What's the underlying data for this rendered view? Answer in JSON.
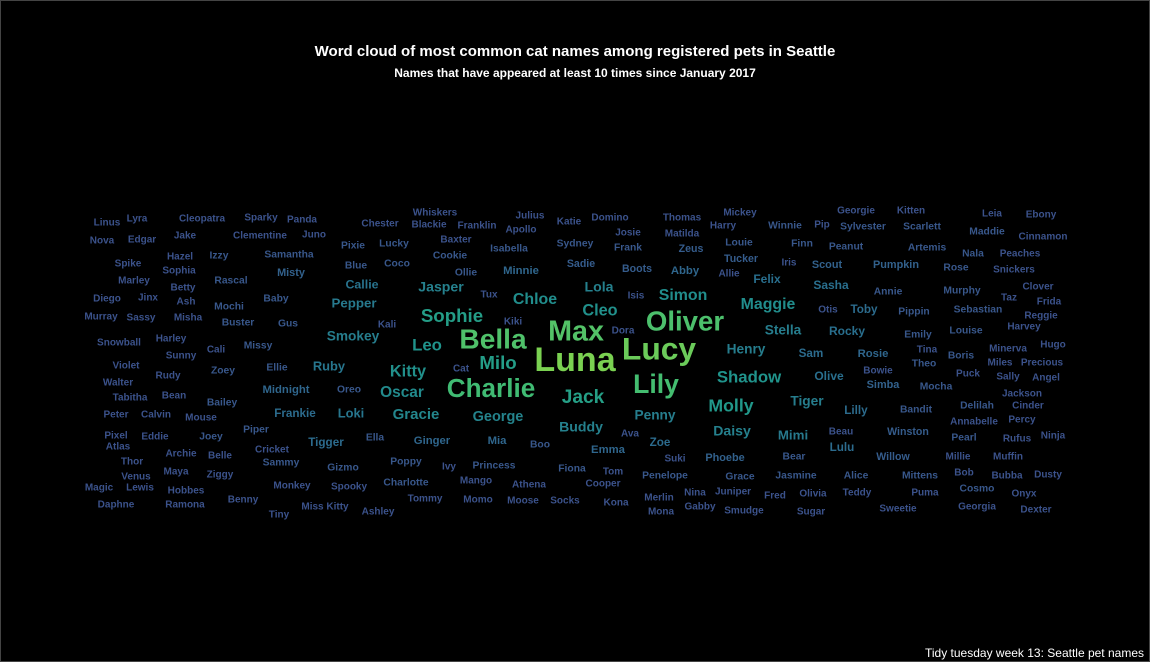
{
  "chart_data": {
    "type": "wordcloud",
    "title": "Word cloud of most common cat names among registered pets in Seattle",
    "subtitle": "Names that have appeared at least 10 times since January 2017",
    "caption": "Tidy tuesday week 13: Seattle pet names",
    "words": [
      {
        "w": "Luna",
        "n": 10
      },
      {
        "w": "Lucy",
        "n": 9.6
      },
      {
        "w": "Max",
        "n": 9.0
      },
      {
        "w": "Bella",
        "n": 8.9
      },
      {
        "w": "Oliver",
        "n": 8.8
      },
      {
        "w": "Lily",
        "n": 8.6
      },
      {
        "w": "Charlie",
        "n": 8.5
      },
      {
        "w": "Jack",
        "n": 7.1
      },
      {
        "w": "Sophie",
        "n": 7.0
      },
      {
        "w": "Milo",
        "n": 7.0
      },
      {
        "w": "Molly",
        "n": 6.8
      },
      {
        "w": "Leo",
        "n": 6.6
      },
      {
        "w": "Shadow",
        "n": 6.6
      },
      {
        "w": "Kitty",
        "n": 6.5
      },
      {
        "w": "Cleo",
        "n": 6.5
      },
      {
        "w": "Simon",
        "n": 6.4
      },
      {
        "w": "Chloe",
        "n": 6.4
      },
      {
        "w": "Maggie",
        "n": 6.4
      },
      {
        "w": "Oscar",
        "n": 6.3
      },
      {
        "w": "Gracie",
        "n": 6.2
      },
      {
        "w": "George",
        "n": 6.1
      },
      {
        "w": "Buddy",
        "n": 6.0
      },
      {
        "w": "Lola",
        "n": 6.0
      },
      {
        "w": "Jasper",
        "n": 6.0
      },
      {
        "w": "Daisy",
        "n": 6.0
      },
      {
        "w": "Penny",
        "n": 5.9
      },
      {
        "w": "Tiger",
        "n": 5.9
      },
      {
        "w": "Smokey",
        "n": 5.9
      },
      {
        "w": "Henry",
        "n": 5.9
      },
      {
        "w": "Stella",
        "n": 5.9
      },
      {
        "w": "Pepper",
        "n": 5.8
      },
      {
        "w": "Mimi",
        "n": 5.8
      },
      {
        "w": "Ruby",
        "n": 5.7
      },
      {
        "w": "Loki",
        "n": 5.7
      },
      {
        "w": "Callie",
        "n": 5.6
      },
      {
        "w": "Sasha",
        "n": 5.5
      },
      {
        "w": "Felix",
        "n": 5.5
      },
      {
        "w": "Rocky",
        "n": 5.5
      },
      {
        "w": "Olive",
        "n": 5.5
      },
      {
        "w": "Sam",
        "n": 5.4
      },
      {
        "w": "Tigger",
        "n": 5.4
      },
      {
        "w": "Frankie",
        "n": 5.4
      },
      {
        "w": "Toby",
        "n": 5.4
      },
      {
        "w": "Zoe",
        "n": 5.4
      },
      {
        "w": "Lulu",
        "n": 5.4
      },
      {
        "w": "Lilly",
        "n": 5.4
      },
      {
        "w": "Ginger",
        "n": 5.3
      },
      {
        "w": "Midnight",
        "n": 5.3
      },
      {
        "w": "Emma",
        "n": 5.3
      },
      {
        "w": "Mia",
        "n": 5.3
      },
      {
        "w": "Rosie",
        "n": 5.3
      },
      {
        "w": "Abby",
        "n": 5.3
      },
      {
        "w": "Minnie",
        "n": 5.3
      },
      {
        "w": "Phoebe",
        "n": 5.2
      },
      {
        "w": "Scout",
        "n": 5.2
      },
      {
        "w": "Pumpkin",
        "n": 5.2
      },
      {
        "w": "Simba",
        "n": 5.2
      },
      {
        "w": "Misty",
        "n": 5.2
      },
      {
        "w": "Sadie",
        "n": 5.1
      },
      {
        "w": "Boots",
        "n": 5.1
      },
      {
        "w": "Zeus",
        "n": 5.1
      },
      {
        "w": "Tucker",
        "n": 5.1
      },
      {
        "w": "Willow",
        "n": 5.1
      },
      {
        "w": "Winston",
        "n": 5.1
      },
      {
        "w": "Bear",
        "n": 5.0
      },
      {
        "w": "Sammy",
        "n": 5.0
      },
      {
        "w": "Poppy",
        "n": 5.0
      },
      {
        "w": "Samantha",
        "n": 5.0
      },
      {
        "w": "Baby",
        "n": 5.0
      },
      {
        "w": "Gus",
        "n": 5.0
      },
      {
        "w": "Ella",
        "n": 5.0
      },
      {
        "w": "Boo",
        "n": 5.0
      },
      {
        "w": "Annie",
        "n": 5.0
      },
      {
        "w": "Pippin",
        "n": 5.0
      },
      {
        "w": "Theo",
        "n": 5.0
      },
      {
        "w": "Cookie",
        "n": 5.0
      },
      {
        "w": "Ollie",
        "n": 5.0
      },
      {
        "w": "Coco",
        "n": 5.0
      },
      {
        "w": "Lucky",
        "n": 5.0
      },
      {
        "w": "Sydney",
        "n": 5.0
      },
      {
        "w": "Isabella",
        "n": 5.0
      },
      {
        "w": "Frank",
        "n": 5.0
      },
      {
        "w": "Louie",
        "n": 5.0
      },
      {
        "w": "Finn",
        "n": 5.0
      },
      {
        "w": "Peanut",
        "n": 5.0
      },
      {
        "w": "Artemis",
        "n": 5.0
      },
      {
        "w": "Blue",
        "n": 5.0
      },
      {
        "w": "Pixie",
        "n": 5.0
      },
      {
        "w": "Izzy",
        "n": 5.0
      },
      {
        "w": "Ellie",
        "n": 5.0
      },
      {
        "w": "Missy",
        "n": 5.0
      },
      {
        "w": "Oreo",
        "n": 5.0
      },
      {
        "w": "Piper",
        "n": 5.0
      },
      {
        "w": "Gizmo",
        "n": 5.0
      },
      {
        "w": "Princess",
        "n": 5.0
      },
      {
        "w": "Fiona",
        "n": 5.0
      },
      {
        "w": "Penelope",
        "n": 5.0
      },
      {
        "w": "Grace",
        "n": 5.0
      },
      {
        "w": "Jasmine",
        "n": 5.0
      },
      {
        "w": "Mittens",
        "n": 5.0
      },
      {
        "w": "Pearl",
        "n": 5.0
      },
      {
        "w": "Bandit",
        "n": 5.0
      },
      {
        "w": "Murphy",
        "n": 5.0
      },
      {
        "w": "Sebastian",
        "n": 5.0
      },
      {
        "w": "Emily",
        "n": 5.0
      },
      {
        "w": "Mocha",
        "n": 5.0
      },
      {
        "w": "Rascal",
        "n": 5.0
      },
      {
        "w": "Mochi",
        "n": 5.0
      },
      {
        "w": "Buster",
        "n": 5.0
      },
      {
        "w": "Zoey",
        "n": 5.0
      },
      {
        "w": "Bailey",
        "n": 5.0
      },
      {
        "w": "Joey",
        "n": 5.0
      },
      {
        "w": "Charlotte",
        "n": 5.0
      },
      {
        "w": "Alice",
        "n": 5.0
      },
      {
        "w": "Cosmo",
        "n": 5.0
      },
      {
        "w": "Delilah",
        "n": 5.0
      },
      {
        "w": "Louise",
        "n": 5.0
      },
      {
        "w": "Boris",
        "n": 5.0
      },
      {
        "w": "Rose",
        "n": 5.0
      },
      {
        "w": "Nala",
        "n": 5.0
      },
      {
        "w": "Maddie",
        "n": 5.0
      },
      {
        "w": "Scarlett",
        "n": 5.0
      },
      {
        "w": "Sylvester",
        "n": 5.0
      },
      {
        "w": "Winnie",
        "n": 5.0
      },
      {
        "w": "Baxter",
        "n": 4.9
      },
      {
        "w": "Sophia",
        "n": 4.9
      },
      {
        "w": "Hazel",
        "n": 4.9
      },
      {
        "w": "Clementine",
        "n": 4.9
      },
      {
        "w": "Jake",
        "n": 4.9
      },
      {
        "w": "Juno",
        "n": 4.9
      },
      {
        "w": "Cali",
        "n": 4.9
      },
      {
        "w": "Harley",
        "n": 4.9
      },
      {
        "w": "Sunny",
        "n": 4.9
      },
      {
        "w": "Rudy",
        "n": 4.9
      },
      {
        "w": "Bean",
        "n": 4.9
      },
      {
        "w": "Calvin",
        "n": 4.9
      },
      {
        "w": "Mouse",
        "n": 4.9
      },
      {
        "w": "Eddie",
        "n": 4.9
      },
      {
        "w": "Archie",
        "n": 4.9
      },
      {
        "w": "Maya",
        "n": 4.9
      },
      {
        "w": "Hobbes",
        "n": 4.9
      },
      {
        "w": "Monkey",
        "n": 4.9
      },
      {
        "w": "Spooky",
        "n": 4.9
      },
      {
        "w": "Tommy",
        "n": 4.9
      },
      {
        "w": "Mango",
        "n": 4.9
      },
      {
        "w": "Athena",
        "n": 4.9
      },
      {
        "w": "Cooper",
        "n": 4.9
      },
      {
        "w": "Juniper",
        "n": 4.9
      },
      {
        "w": "Olivia",
        "n": 4.9
      },
      {
        "w": "Teddy",
        "n": 4.9
      },
      {
        "w": "Puma",
        "n": 4.9
      },
      {
        "w": "Muffin",
        "n": 4.9
      },
      {
        "w": "Rufus",
        "n": 4.9
      },
      {
        "w": "Millie",
        "n": 4.9
      },
      {
        "w": "Puck",
        "n": 4.9
      },
      {
        "w": "Jackson",
        "n": 4.9
      },
      {
        "w": "Sally",
        "n": 4.9
      },
      {
        "w": "Bubba",
        "n": 4.9
      },
      {
        "w": "Onyx",
        "n": 4.9
      },
      {
        "w": "Ziggy",
        "n": 4.9
      },
      {
        "w": "Misha",
        "n": 4.9
      },
      {
        "w": "Betty",
        "n": 4.9
      },
      {
        "w": "Minerva",
        "n": 4.9
      },
      {
        "w": "Smudge",
        "n": 4.9
      },
      {
        "w": "Merlin",
        "n": 4.9
      },
      {
        "w": "Sugar",
        "n": 4.9
      },
      {
        "w": "Fred",
        "n": 4.9
      },
      {
        "w": "Kona",
        "n": 4.9
      },
      {
        "w": "Moose",
        "n": 4.9
      },
      {
        "w": "Socks",
        "n": 4.9
      },
      {
        "w": "Momo",
        "n": 4.9
      },
      {
        "w": "Miss Kitty",
        "n": 4.9
      },
      {
        "w": "Ashley",
        "n": 4.9
      },
      {
        "w": "Tiny",
        "n": 4.9
      },
      {
        "w": "Benny",
        "n": 4.9
      },
      {
        "w": "Ramona",
        "n": 4.9
      },
      {
        "w": "Daphne",
        "n": 4.9
      },
      {
        "w": "Sweetie",
        "n": 4.9
      },
      {
        "w": "Georgia",
        "n": 4.9
      },
      {
        "w": "Dexter",
        "n": 4.9
      },
      {
        "w": "Dusty",
        "n": 4.9
      },
      {
        "w": "Bob",
        "n": 4.9
      },
      {
        "w": "Marley",
        "n": 4.9
      },
      {
        "w": "Spike",
        "n": 4.9
      },
      {
        "w": "Edgar",
        "n": 4.9
      },
      {
        "w": "Lyra",
        "n": 4.9
      },
      {
        "w": "Cleopatra",
        "n": 4.9
      },
      {
        "w": "Sparky",
        "n": 4.9
      },
      {
        "w": "Panda",
        "n": 4.9
      },
      {
        "w": "Chester",
        "n": 4.9
      },
      {
        "w": "Whiskers",
        "n": 4.9
      },
      {
        "w": "Blackie",
        "n": 4.9
      },
      {
        "w": "Franklin",
        "n": 4.9
      },
      {
        "w": "Julius",
        "n": 4.9
      },
      {
        "w": "Apollo",
        "n": 4.9
      },
      {
        "w": "Katie",
        "n": 4.9
      },
      {
        "w": "Domino",
        "n": 4.9
      },
      {
        "w": "Josie",
        "n": 4.9
      },
      {
        "w": "Thomas",
        "n": 4.9
      },
      {
        "w": "Matilda",
        "n": 4.9
      },
      {
        "w": "Mickey",
        "n": 4.9
      },
      {
        "w": "Harry",
        "n": 4.9
      },
      {
        "w": "Pip",
        "n": 4.9
      },
      {
        "w": "Georgie",
        "n": 4.9
      },
      {
        "w": "Kitten",
        "n": 4.9
      },
      {
        "w": "Leia",
        "n": 4.9
      },
      {
        "w": "Ebony",
        "n": 4.9
      },
      {
        "w": "Cinnamon",
        "n": 4.9
      },
      {
        "w": "Peaches",
        "n": 4.9
      },
      {
        "w": "Snickers",
        "n": 4.9
      },
      {
        "w": "Clover",
        "n": 4.9
      },
      {
        "w": "Frida",
        "n": 4.9
      },
      {
        "w": "Reggie",
        "n": 4.9
      },
      {
        "w": "Harvey",
        "n": 4.9
      },
      {
        "w": "Hugo",
        "n": 4.9
      },
      {
        "w": "Precious",
        "n": 4.9
      },
      {
        "w": "Angel",
        "n": 4.9
      },
      {
        "w": "Ninja",
        "n": 4.9
      },
      {
        "w": "Cinder",
        "n": 4.9
      },
      {
        "w": "Percy",
        "n": 4.9
      },
      {
        "w": "Annabelle",
        "n": 4.9
      },
      {
        "w": "Miles",
        "n": 4.9
      },
      {
        "w": "Taz",
        "n": 4.9
      },
      {
        "w": "Linus",
        "n": 4.9
      },
      {
        "w": "Nova",
        "n": 4.9
      },
      {
        "w": "Diego",
        "n": 4.9
      },
      {
        "w": "Jinx",
        "n": 4.9
      },
      {
        "w": "Murray",
        "n": 4.9
      },
      {
        "w": "Sassy",
        "n": 4.9
      },
      {
        "w": "Snowball",
        "n": 4.9
      },
      {
        "w": "Violet",
        "n": 4.9
      },
      {
        "w": "Walter",
        "n": 4.9
      },
      {
        "w": "Tabitha",
        "n": 4.9
      },
      {
        "w": "Peter",
        "n": 4.9
      },
      {
        "w": "Pixel",
        "n": 4.9
      },
      {
        "w": "Atlas",
        "n": 4.9
      },
      {
        "w": "Thor",
        "n": 4.9
      },
      {
        "w": "Venus",
        "n": 4.9
      },
      {
        "w": "Magic",
        "n": 4.9
      },
      {
        "w": "Lewis",
        "n": 4.9
      },
      {
        "w": "Belle",
        "n": 4.9
      },
      {
        "w": "Cricket",
        "n": 4.9
      },
      {
        "w": "Ash",
        "n": 4.9
      },
      {
        "w": "Kali",
        "n": 4.9
      },
      {
        "w": "Tux",
        "n": 4.9
      },
      {
        "w": "Kiki",
        "n": 4.9
      },
      {
        "w": "Cat",
        "n": 4.9
      },
      {
        "w": "Isis",
        "n": 4.9
      },
      {
        "w": "Dora",
        "n": 4.9
      },
      {
        "w": "Allie",
        "n": 4.9
      },
      {
        "w": "Iris",
        "n": 4.9
      },
      {
        "w": "Otis",
        "n": 4.9
      },
      {
        "w": "Bowie",
        "n": 4.9
      },
      {
        "w": "Beau",
        "n": 4.9
      },
      {
        "w": "Tina",
        "n": 4.9
      },
      {
        "w": "Ava",
        "n": 4.9
      },
      {
        "w": "Suki",
        "n": 4.9
      },
      {
        "w": "Tom",
        "n": 4.9
      },
      {
        "w": "Ivy",
        "n": 4.9
      },
      {
        "w": "Nina",
        "n": 4.9
      },
      {
        "w": "Mona",
        "n": 4.9
      },
      {
        "w": "Gabby",
        "n": 4.9
      }
    ]
  }
}
